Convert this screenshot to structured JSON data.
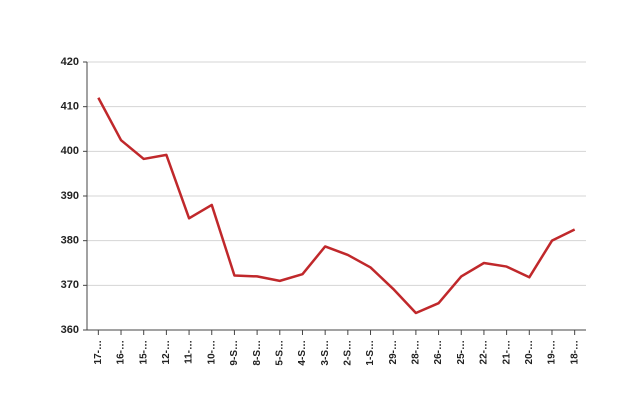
{
  "chart_data": {
    "type": "line",
    "categories": [
      "17-…",
      "16-…",
      "15-…",
      "12-…",
      "11-…",
      "10-…",
      "9-S…",
      "8-S…",
      "5-S…",
      "4-S…",
      "3-S…",
      "2-S…",
      "1-S…",
      "29-…",
      "28-…",
      "26-…",
      "25-…",
      "22-…",
      "21-…",
      "20-…",
      "19-…",
      "18-…"
    ],
    "series": [
      {
        "color": "#c0282b",
        "values": [
          412,
          402.5,
          398.3,
          399.2,
          385,
          388,
          372.2,
          372,
          371,
          372.5,
          378.7,
          376.8,
          374,
          369.2,
          363.8,
          366,
          372,
          375,
          374.2,
          371.8,
          380,
          382.5
        ]
      }
    ],
    "ylim": [
      360,
      420
    ],
    "yticks": [
      360,
      370,
      380,
      390,
      400,
      410,
      420
    ],
    "grid": true
  }
}
